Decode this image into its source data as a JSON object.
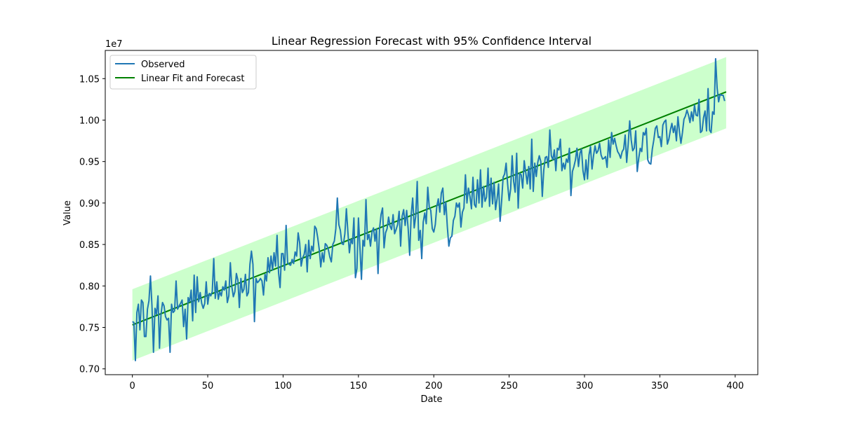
{
  "chart_data": {
    "type": "line",
    "title": "Linear Regression Forecast with 95% Confidence Interval",
    "xlabel": "Date",
    "ylabel": "Value",
    "y_offset_label": "1e7",
    "xlim": [
      -18,
      415
    ],
    "ylim": [
      6930000,
      10840000
    ],
    "x_ticks": [
      0,
      50,
      100,
      150,
      200,
      250,
      300,
      350,
      400
    ],
    "x_tick_labels": [
      "0",
      "50",
      "100",
      "150",
      "200",
      "250",
      "300",
      "350",
      "400"
    ],
    "y_ticks": [
      7000000,
      7500000,
      8000000,
      8500000,
      9000000,
      9500000,
      10000000,
      10500000
    ],
    "y_tick_labels": [
      "0.70",
      "0.75",
      "0.80",
      "0.85",
      "0.90",
      "0.95",
      "1.00",
      "1.05"
    ],
    "grid": false,
    "legend_position": "top-left",
    "colors": {
      "observed": "#1f77b4",
      "fit": "#008000",
      "band": "#99ff99"
    },
    "series": [
      {
        "name": "Observed",
        "kind": "line",
        "x_start": 0,
        "x_step": 1,
        "values": [
          7570000,
          7560000,
          7100000,
          7680000,
          7780000,
          7470000,
          7830000,
          7800000,
          7390000,
          7390000,
          7720000,
          7820000,
          8120000,
          7760000,
          7200000,
          7730000,
          7660000,
          7880000,
          7250000,
          7660000,
          7800000,
          7760000,
          7630000,
          7590000,
          7610000,
          7200000,
          7780000,
          7680000,
          7700000,
          8060000,
          7720000,
          7760000,
          7790000,
          7830000,
          7510000,
          7720000,
          7360000,
          7860000,
          7810000,
          7950000,
          7580000,
          8130000,
          7680000,
          8110000,
          7810000,
          7920000,
          7790000,
          7730000,
          7790000,
          8050000,
          7780000,
          7910000,
          7880000,
          7930000,
          8330000,
          7850000,
          8050000,
          7840000,
          7930000,
          7880000,
          7990000,
          7950000,
          8060000,
          7800000,
          7880000,
          8280000,
          7990000,
          7870000,
          7930000,
          8150000,
          8070000,
          7740000,
          8090000,
          7920000,
          7960000,
          8140000,
          7880000,
          7920000,
          8260000,
          8420000,
          8260000,
          7570000,
          8090000,
          8040000,
          8060000,
          8090000,
          8060000,
          7890000,
          8140000,
          8060000,
          8340000,
          8160000,
          8360000,
          8190000,
          8400000,
          8240000,
          8610000,
          8160000,
          7980000,
          8390000,
          8390000,
          8190000,
          8730000,
          8280000,
          8260000,
          8250000,
          8320000,
          8270000,
          8410000,
          8360000,
          8640000,
          8520000,
          8240000,
          8340000,
          8380000,
          8500000,
          8170000,
          8550000,
          8330000,
          8480000,
          8420000,
          8720000,
          8690000,
          8580000,
          8440000,
          8230000,
          8400000,
          8290000,
          8510000,
          8490000,
          8440000,
          8350000,
          8290000,
          8500000,
          8540000,
          8690000,
          9060000,
          8740000,
          8670000,
          8510000,
          8500000,
          8630000,
          8930000,
          8650000,
          8400000,
          8560000,
          8510000,
          8820000,
          8100000,
          8210000,
          8820000,
          8460000,
          8080000,
          8550000,
          8480000,
          9040000,
          8560000,
          8620000,
          8480000,
          8650000,
          8700000,
          8540000,
          8690000,
          8150000,
          8690000,
          8860000,
          8940000,
          8460000,
          8640000,
          8690000,
          8830000,
          8720000,
          8680000,
          8860000,
          8630000,
          8680000,
          8740000,
          8900000,
          8480000,
          8840000,
          8920000,
          8730000,
          8910000,
          8690000,
          8370000,
          8860000,
          9060000,
          8700000,
          8840000,
          9260000,
          8550000,
          8670000,
          8330000,
          8770000,
          8880000,
          8750000,
          9190000,
          8950000,
          8910000,
          8690000,
          8650000,
          8740000,
          8960000,
          9050000,
          8890000,
          9120000,
          9180000,
          8860000,
          9010000,
          8710000,
          8480000,
          8580000,
          8600000,
          8790000,
          8840000,
          9000000,
          8950000,
          9000000,
          8710000,
          8890000,
          8940000,
          9340000,
          9000000,
          9180000,
          9080000,
          8930000,
          9310000,
          8980000,
          8950000,
          9280000,
          9000000,
          9400000,
          8950000,
          9200000,
          9020000,
          9070000,
          9420000,
          8960000,
          9300000,
          8990000,
          9250000,
          8920000,
          9050000,
          9230000,
          8780000,
          9020000,
          9310000,
          9350000,
          9480000,
          9230000,
          9030000,
          9170000,
          9570000,
          9260000,
          9130000,
          9600000,
          8940000,
          9360000,
          9340000,
          9180000,
          9510000,
          9370000,
          9230000,
          9440000,
          9170000,
          9770000,
          9140000,
          9480000,
          9320000,
          9490000,
          9570000,
          9500000,
          9080000,
          9400000,
          9550000,
          9560000,
          9430000,
          9880000,
          9570000,
          9520000,
          9640000,
          9390000,
          9660000,
          9640000,
          9770000,
          9390000,
          9480000,
          9410000,
          9530000,
          9490000,
          9660000,
          9090000,
          9380000,
          9440000,
          9520000,
          9660000,
          9440000,
          9600000,
          9650000,
          9390000,
          9280000,
          9520000,
          9290000,
          9580000,
          9680000,
          9410000,
          9570000,
          9690000,
          9600000,
          9630000,
          9720000,
          9580000,
          9530000,
          9540000,
          9560000,
          9430000,
          9760000,
          9550000,
          9850000,
          9710000,
          9780000,
          9690000,
          9620000,
          9590000,
          9540000,
          9620000,
          9650000,
          9820000,
          9490000,
          9710000,
          9990000,
          9760000,
          9630000,
          9660000,
          9870000,
          9380000,
          9540000,
          9660000,
          9620000,
          9850000,
          9820000,
          9900000,
          9520000,
          9480000,
          9470000,
          9650000,
          9760000,
          9900000,
          9930000,
          9790000,
          9800000,
          9680000,
          9940000,
          9980000,
          10000000,
          9710000,
          9770000,
          9880000,
          9960000,
          9850000,
          9930000,
          9750000,
          10040000,
          9860000,
          9720000,
          9850000,
          10010000,
          10050000,
          10120000,
          10060000,
          9970000,
          10100000,
          9990000,
          10180000,
          10060000,
          10050000,
          10250000,
          9850000,
          9870000,
          10030000,
          10110000,
          9870000,
          10380000,
          9880000,
          9850000,
          10100000,
          10070000,
          10740000,
          10390000,
          10220000,
          10310000,
          10300000,
          10300000,
          10230000
        ]
      },
      {
        "name": "Linear Fit and Forecast",
        "kind": "line",
        "x": [
          0,
          394
        ],
        "values": [
          7530000,
          10340000
        ]
      }
    ],
    "confidence_band": {
      "x": [
        0,
        394
      ],
      "lower": [
        7100000,
        9900000
      ],
      "upper": [
        7960000,
        10760000
      ]
    }
  }
}
